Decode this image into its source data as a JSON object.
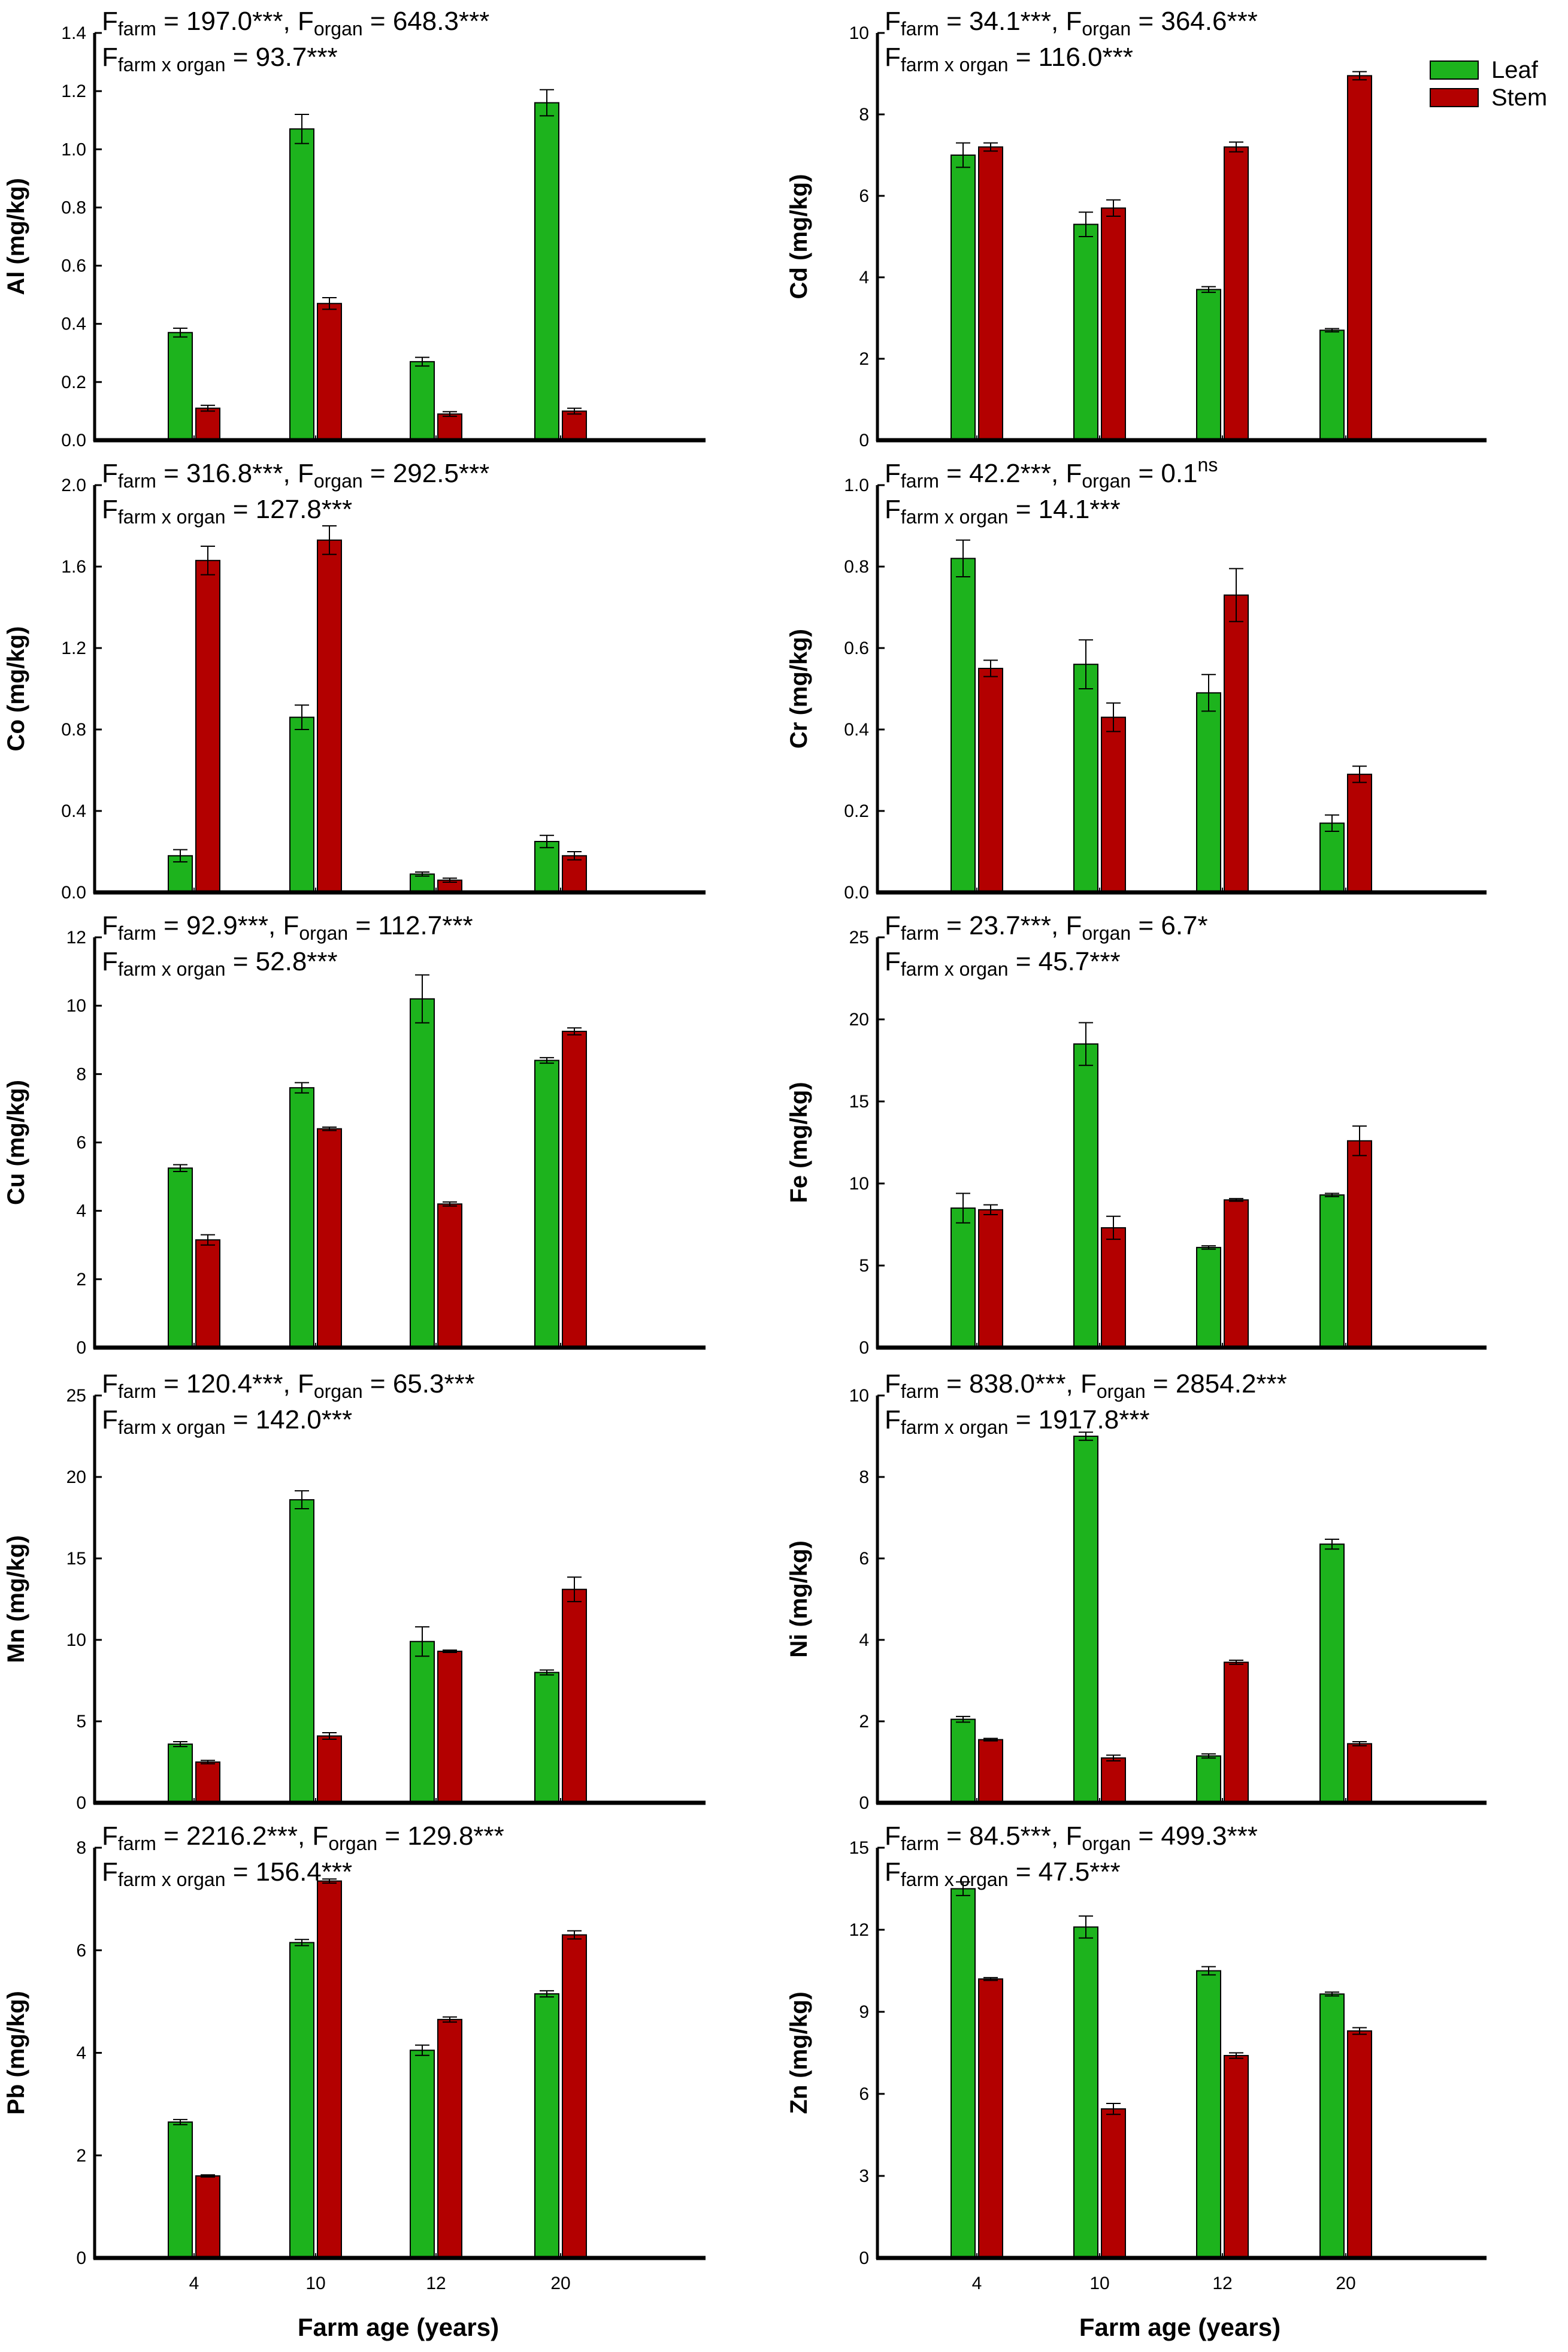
{
  "legend": {
    "leaf": "Leaf",
    "stem": "Stem"
  },
  "x_axis_label": "Farm age (years)",
  "colors": {
    "leaf": "#1db31d",
    "stem": "#b30000",
    "axis": "#000000"
  },
  "chart_data": [
    {
      "type": "bar",
      "id": "al",
      "ylabel": "Al (mg/kg)",
      "categories": [
        "4",
        "10",
        "12",
        "20"
      ],
      "ylim": [
        0,
        1.4
      ],
      "yticks": [
        "0.0",
        "0.2",
        "0.4",
        "0.6",
        "0.8",
        "1.0",
        "1.2",
        "1.4"
      ],
      "series": [
        {
          "name": "Leaf",
          "values": [
            0.37,
            1.07,
            0.27,
            1.16
          ],
          "errors": [
            0.015,
            0.05,
            0.015,
            0.045
          ]
        },
        {
          "name": "Stem",
          "values": [
            0.11,
            0.47,
            0.09,
            0.1
          ],
          "errors": [
            0.01,
            0.02,
            0.008,
            0.01
          ]
        }
      ],
      "stat_line1": {
        "farm": "197.0***",
        "organ": "648.3***"
      },
      "stat_line2": {
        "interaction": "93.7***"
      },
      "stat_labels": {
        "F": "F",
        "farm": "farm",
        "organ": "organ",
        "interaction": "farm x organ"
      }
    },
    {
      "type": "bar",
      "id": "cd",
      "ylabel": "Cd (mg/kg)",
      "categories": [
        "4",
        "10",
        "12",
        "20"
      ],
      "ylim": [
        0,
        10
      ],
      "yticks": [
        "0",
        "2",
        "4",
        "6",
        "8",
        "10"
      ],
      "series": [
        {
          "name": "Leaf",
          "values": [
            7.0,
            5.3,
            3.7,
            2.7
          ],
          "errors": [
            0.3,
            0.3,
            0.07,
            0.04
          ]
        },
        {
          "name": "Stem",
          "values": [
            7.2,
            5.7,
            7.2,
            8.95
          ],
          "errors": [
            0.1,
            0.2,
            0.12,
            0.1
          ]
        }
      ],
      "stat_line1": {
        "farm": "34.1***",
        "organ": "364.6***"
      },
      "stat_line2": {
        "interaction": "116.0***"
      },
      "stat_labels": {
        "F": "F",
        "farm": "farm",
        "organ": "organ",
        "interaction": "farm x organ"
      }
    },
    {
      "type": "bar",
      "id": "co",
      "ylabel": "Co (mg/kg)",
      "categories": [
        "4",
        "10",
        "12",
        "20"
      ],
      "ylim": [
        0,
        2.0
      ],
      "yticks": [
        "0.0",
        "0.4",
        "0.8",
        "1.2",
        "1.6",
        "2.0"
      ],
      "series": [
        {
          "name": "Leaf",
          "values": [
            0.18,
            0.86,
            0.09,
            0.25
          ],
          "errors": [
            0.03,
            0.06,
            0.01,
            0.03
          ]
        },
        {
          "name": "Stem",
          "values": [
            1.63,
            1.73,
            0.06,
            0.18
          ],
          "errors": [
            0.07,
            0.07,
            0.01,
            0.02
          ]
        }
      ],
      "stat_line1": {
        "farm": "316.8***",
        "organ": "292.5***"
      },
      "stat_line2": {
        "interaction": "127.8***"
      },
      "stat_labels": {
        "F": "F",
        "farm": "farm",
        "organ": "organ",
        "interaction": "farm x organ"
      }
    },
    {
      "type": "bar",
      "id": "cr",
      "ylabel": "Cr (mg/kg)",
      "categories": [
        "4",
        "10",
        "12",
        "20"
      ],
      "ylim": [
        0,
        1.0
      ],
      "yticks": [
        "0.0",
        "0.2",
        "0.4",
        "0.6",
        "0.8",
        "1.0"
      ],
      "series": [
        {
          "name": "Leaf",
          "values": [
            0.82,
            0.56,
            0.49,
            0.17
          ],
          "errors": [
            0.045,
            0.06,
            0.045,
            0.02
          ]
        },
        {
          "name": "Stem",
          "values": [
            0.55,
            0.43,
            0.73,
            0.29
          ],
          "errors": [
            0.02,
            0.035,
            0.065,
            0.02
          ]
        }
      ],
      "stat_line1": {
        "farm": "42.2***",
        "organ": "0.1",
        "organ_sup": "ns"
      },
      "stat_line2": {
        "interaction": "14.1***"
      },
      "stat_labels": {
        "F": "F",
        "farm": "farm",
        "organ": "organ",
        "interaction": "farm x organ"
      }
    },
    {
      "type": "bar",
      "id": "cu",
      "ylabel": "Cu (mg/kg)",
      "categories": [
        "4",
        "10",
        "12",
        "20"
      ],
      "ylim": [
        0,
        12
      ],
      "yticks": [
        "0",
        "2",
        "4",
        "6",
        "8",
        "10",
        "12"
      ],
      "series": [
        {
          "name": "Leaf",
          "values": [
            5.25,
            7.6,
            10.2,
            8.4
          ],
          "errors": [
            0.1,
            0.15,
            0.7,
            0.08
          ]
        },
        {
          "name": "Stem",
          "values": [
            3.15,
            6.4,
            4.2,
            9.25
          ],
          "errors": [
            0.15,
            0.05,
            0.06,
            0.1
          ]
        }
      ],
      "stat_line1": {
        "farm": "92.9***",
        "organ": "112.7***"
      },
      "stat_line2": {
        "interaction": "52.8***"
      },
      "stat_labels": {
        "F": "F",
        "farm": "farm",
        "organ": "organ",
        "interaction": "farm x organ"
      }
    },
    {
      "type": "bar",
      "id": "fe",
      "ylabel": "Fe (mg/kg)",
      "categories": [
        "4",
        "10",
        "12",
        "20"
      ],
      "ylim": [
        0,
        25
      ],
      "yticks": [
        "0",
        "5",
        "10",
        "15",
        "20",
        "25"
      ],
      "series": [
        {
          "name": "Leaf",
          "values": [
            8.5,
            18.5,
            6.1,
            9.3
          ],
          "errors": [
            0.9,
            1.3,
            0.1,
            0.1
          ]
        },
        {
          "name": "Stem",
          "values": [
            8.4,
            7.3,
            9.0,
            12.6
          ],
          "errors": [
            0.3,
            0.7,
            0.08,
            0.9
          ]
        }
      ],
      "stat_line1": {
        "farm": "23.7***",
        "organ": "6.7*"
      },
      "stat_line2": {
        "interaction": "45.7***"
      },
      "stat_labels": {
        "F": "F",
        "farm": "farm",
        "organ": "organ",
        "interaction": "farm x organ"
      }
    },
    {
      "type": "bar",
      "id": "mn",
      "ylabel": "Mn (mg/kg)",
      "categories": [
        "4",
        "10",
        "12",
        "20"
      ],
      "ylim": [
        0,
        25
      ],
      "yticks": [
        "0",
        "5",
        "10",
        "15",
        "20",
        "25"
      ],
      "series": [
        {
          "name": "Leaf",
          "values": [
            3.6,
            18.6,
            9.9,
            8.0
          ],
          "errors": [
            0.15,
            0.55,
            0.9,
            0.15
          ]
        },
        {
          "name": "Stem",
          "values": [
            2.5,
            4.1,
            9.3,
            13.1
          ],
          "errors": [
            0.1,
            0.2,
            0.07,
            0.75
          ]
        }
      ],
      "stat_line1": {
        "farm": "120.4***",
        "organ": "65.3***"
      },
      "stat_line2": {
        "interaction": "142.0***"
      },
      "stat_labels": {
        "F": "F",
        "farm": "farm",
        "organ": "organ",
        "interaction": "farm x organ"
      }
    },
    {
      "type": "bar",
      "id": "ni",
      "ylabel": "Ni (mg/kg)",
      "categories": [
        "4",
        "10",
        "12",
        "20"
      ],
      "ylim": [
        0,
        10
      ],
      "yticks": [
        "0",
        "2",
        "4",
        "6",
        "8",
        "10"
      ],
      "series": [
        {
          "name": "Leaf",
          "values": [
            2.05,
            9.0,
            1.15,
            6.35
          ],
          "errors": [
            0.07,
            0.1,
            0.05,
            0.12
          ]
        },
        {
          "name": "Stem",
          "values": [
            1.55,
            1.1,
            3.45,
            1.45
          ],
          "errors": [
            0.03,
            0.07,
            0.05,
            0.05
          ]
        }
      ],
      "stat_line1": {
        "farm": "838.0***",
        "organ": "2854.2***"
      },
      "stat_line2": {
        "interaction": "1917.8***"
      },
      "stat_labels": {
        "F": "F",
        "farm": "farm",
        "organ": "organ",
        "interaction": "farm x organ"
      }
    },
    {
      "type": "bar",
      "id": "pb",
      "ylabel": "Pb (mg/kg)",
      "categories": [
        "4",
        "10",
        "12",
        "20"
      ],
      "ylim": [
        0,
        8
      ],
      "yticks": [
        "0",
        "2",
        "4",
        "6",
        "8"
      ],
      "series": [
        {
          "name": "Leaf",
          "values": [
            2.65,
            6.15,
            4.05,
            5.15
          ],
          "errors": [
            0.05,
            0.06,
            0.1,
            0.06
          ]
        },
        {
          "name": "Stem",
          "values": [
            1.6,
            7.35,
            4.65,
            6.3
          ],
          "errors": [
            0.02,
            0.04,
            0.05,
            0.08
          ]
        }
      ],
      "stat_line1": {
        "farm": "2216.2***",
        "organ": "129.8***"
      },
      "stat_line2": {
        "interaction": "156.4***"
      },
      "stat_labels": {
        "F": "F",
        "farm": "farm",
        "organ": "organ",
        "interaction": "farm x organ"
      }
    },
    {
      "type": "bar",
      "id": "zn",
      "ylabel": "Zn (mg/kg)",
      "categories": [
        "4",
        "10",
        "12",
        "20"
      ],
      "ylim": [
        0,
        15
      ],
      "yticks": [
        "0",
        "3",
        "6",
        "9",
        "12",
        "15"
      ],
      "series": [
        {
          "name": "Leaf",
          "values": [
            13.5,
            12.1,
            10.5,
            9.65
          ],
          "errors": [
            0.25,
            0.4,
            0.15,
            0.07
          ]
        },
        {
          "name": "Stem",
          "values": [
            10.2,
            5.45,
            7.4,
            8.3
          ],
          "errors": [
            0.05,
            0.2,
            0.1,
            0.12
          ]
        }
      ],
      "stat_line1": {
        "farm": "84.5***",
        "organ": "499.3***"
      },
      "stat_line2": {
        "interaction": "47.5***"
      },
      "stat_labels": {
        "F": "F",
        "farm": "farm",
        "organ": "organ",
        "interaction": "farm x organ"
      }
    }
  ]
}
